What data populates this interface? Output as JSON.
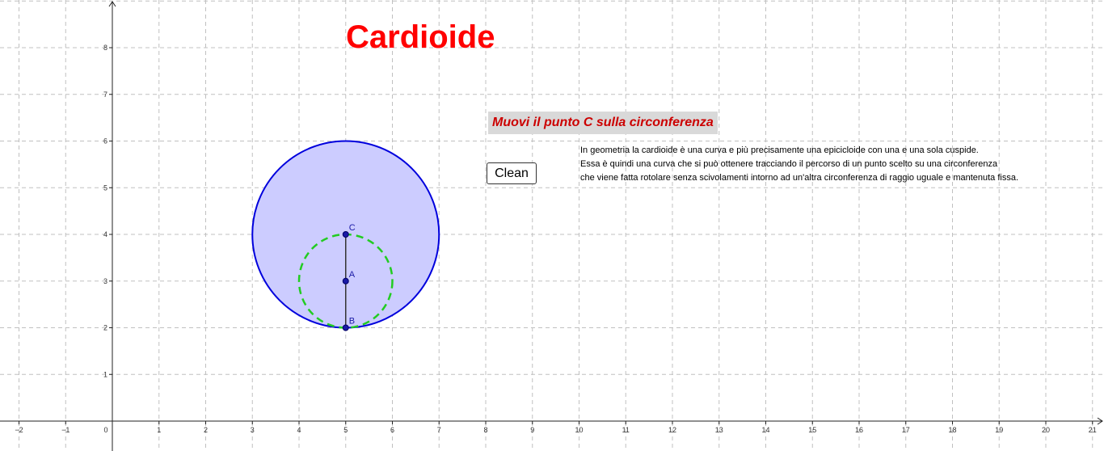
{
  "title": "Cardioide",
  "instruction": "Muovi il punto C sulla circonferenza",
  "clean_button": "Clean",
  "description": [
    "In geometria la cardioide è una curva e più precisamente una epicicloide con una e una sola cuspide.",
    "Essa è quindi una curva che si può ottenere tracciando il percorso di un punto scelto su una circonferenza",
    "che viene fatta rotolare senza scivolamenti intorno ad un'altra circonferenza di raggio uguale e mantenuta fissa."
  ],
  "axes": {
    "x_ticks": [
      -2,
      -1,
      0,
      1,
      2,
      3,
      4,
      5,
      6,
      7,
      8,
      9,
      10,
      11,
      12,
      13,
      14,
      15,
      16,
      17,
      18,
      19,
      20,
      21
    ],
    "y_ticks": [
      1,
      2,
      3,
      4,
      5,
      6,
      7,
      8
    ]
  },
  "geometry": {
    "big_circle": {
      "center": [
        5,
        4
      ],
      "radius": 2
    },
    "small_circle": {
      "center": [
        5,
        3
      ],
      "radius": 1
    },
    "segment": {
      "from": "B",
      "to": "C"
    },
    "points": [
      {
        "label": "C",
        "x": 5,
        "y": 4
      },
      {
        "label": "A",
        "x": 5,
        "y": 3
      },
      {
        "label": "B",
        "x": 5,
        "y": 2
      }
    ]
  },
  "colors": {
    "title": "#ff0000",
    "instruction_text": "#cc0000",
    "instruction_bg": "#d9d9d9",
    "big_circle_stroke": "#0000dd",
    "big_circle_fill": "#ccccff",
    "small_circle_stroke": "#22cc22",
    "points": "#1a1aa6",
    "grid": "#c0c0c0"
  }
}
